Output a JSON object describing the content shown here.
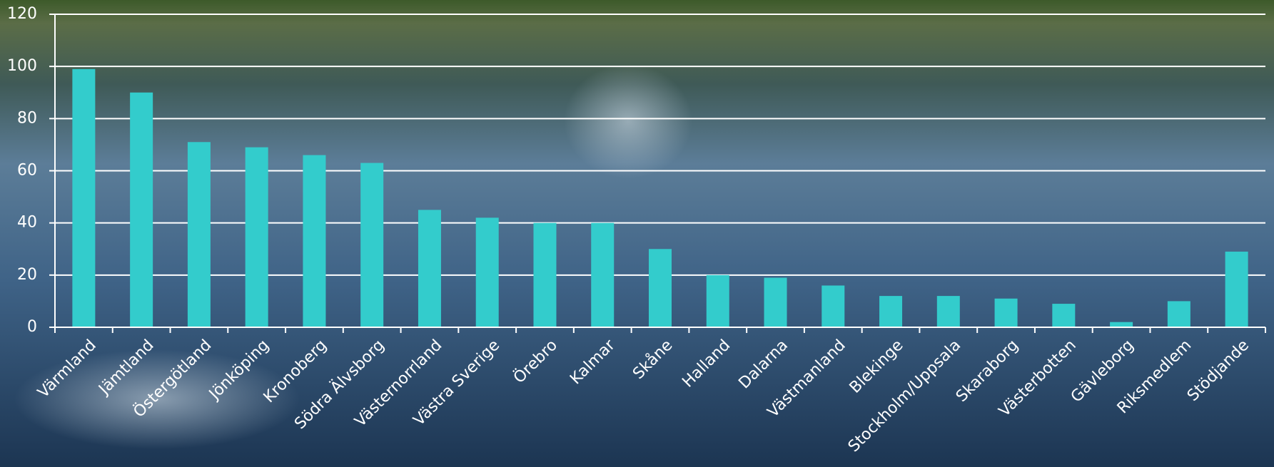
{
  "chart_data": {
    "type": "bar",
    "categories": [
      "Värmland",
      "Jämtland",
      "Östergötland",
      "Jönköping",
      "Kronoberg",
      "Södra Älvsborg",
      "Västernorrland",
      "Västra Sverige",
      "Örebro",
      "Kalmar",
      "Skåne",
      "Halland",
      "Dalarna",
      "Västmanland",
      "Blekinge",
      "Stockholm/Uppsala",
      "Skaraborg",
      "Västerbotten",
      "Gävleborg",
      "Riksmedlem",
      "Stödjande"
    ],
    "values": [
      99,
      90,
      71,
      69,
      66,
      63,
      45,
      42,
      40,
      40,
      30,
      20,
      19,
      16,
      12,
      12,
      11,
      9,
      2,
      10,
      29
    ],
    "color": "#33cccc",
    "ylim": [
      0,
      120
    ],
    "yticks": [
      0,
      20,
      40,
      60,
      80,
      100,
      120
    ],
    "grid": true
  }
}
